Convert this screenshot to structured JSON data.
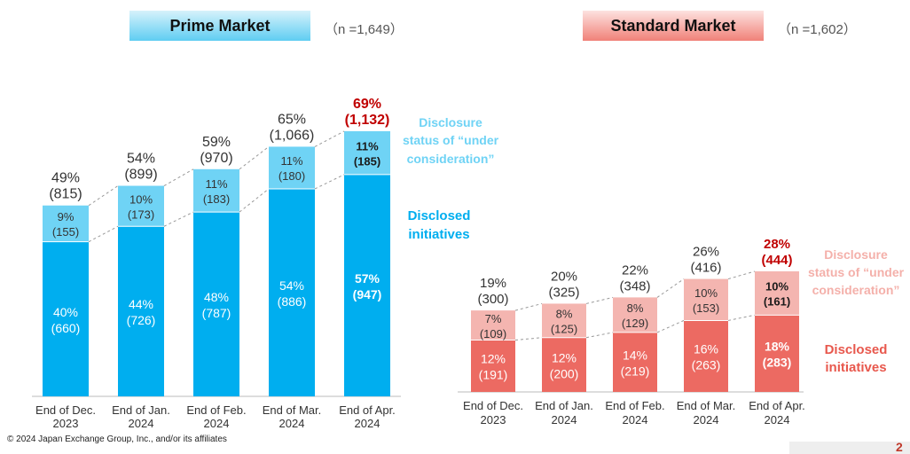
{
  "copyright": "© 2024 Japan Exchange Group, Inc., and/or its affiliates",
  "page_number": "2",
  "colors": {
    "prime_disclosed": "#00aeef",
    "prime_consider": "#6fd3f5",
    "prime_legend": "#00aeef",
    "prime_legend_consider": "#6fd3f5",
    "std_disclosed": "#ec6a62",
    "std_consider": "#f4b5b0",
    "std_legend": "#e8584d",
    "std_legend_consider": "#f4b0aa",
    "highlight": "#c00000"
  },
  "chart_data": [
    {
      "type": "bar",
      "stacked": true,
      "title": "Prime Market",
      "n_label": "（n =1,649）",
      "categories": [
        [
          "End of Dec.",
          "2023"
        ],
        [
          "End of Jan.",
          "2024"
        ],
        [
          "End of Feb.",
          "2024"
        ],
        [
          "End of Mar.",
          "2024"
        ],
        [
          "End of Apr.",
          "2024"
        ]
      ],
      "series": [
        {
          "name_lines": [
            "Disclosed",
            "initiatives"
          ],
          "values": [
            660,
            726,
            787,
            886,
            947
          ],
          "pct": [
            "40%",
            "44%",
            "48%",
            "54%",
            "57%"
          ],
          "counts": [
            "(660)",
            "(726)",
            "(787)",
            "(886)",
            "(947)"
          ]
        },
        {
          "name_lines": [
            "Disclosure",
            "status of “under",
            "consideration”"
          ],
          "values": [
            155,
            173,
            183,
            180,
            185
          ],
          "pct": [
            "9%",
            "10%",
            "11%",
            "11%",
            "11%"
          ],
          "counts": [
            "(155)",
            "(173)",
            "(183)",
            "(180)",
            "(185)"
          ]
        }
      ],
      "totals_pct": [
        "49%",
        "54%",
        "59%",
        "65%",
        "69%"
      ],
      "totals_count": [
        "(815)",
        "(899)",
        "(970)",
        "(1,066)",
        "(1,132)"
      ],
      "ylim": [
        0,
        1132
      ]
    },
    {
      "type": "bar",
      "stacked": true,
      "title": "Standard Market",
      "n_label": "（n =1,602）",
      "categories": [
        [
          "End of Dec.",
          "2023"
        ],
        [
          "End of Jan.",
          "2024"
        ],
        [
          "End of Feb.",
          "2024"
        ],
        [
          "End of Mar.",
          "2024"
        ],
        [
          "End of Apr.",
          "2024"
        ]
      ],
      "series": [
        {
          "name_lines": [
            "Disclosed",
            "initiatives"
          ],
          "values": [
            191,
            200,
            219,
            263,
            283
          ],
          "pct": [
            "12%",
            "12%",
            "14%",
            "16%",
            "18%"
          ],
          "counts": [
            "(191)",
            "(200)",
            "(219)",
            "(263)",
            "(283)"
          ]
        },
        {
          "name_lines": [
            "Disclosure",
            "status of “under",
            "consideration”"
          ],
          "values": [
            109,
            125,
            129,
            153,
            161
          ],
          "pct": [
            "7%",
            "8%",
            "8%",
            "10%",
            "10%"
          ],
          "counts": [
            "(109)",
            "(125)",
            "(129)",
            "(153)",
            "(161)"
          ]
        }
      ],
      "totals_pct": [
        "19%",
        "20%",
        "22%",
        "26%",
        "28%"
      ],
      "totals_count": [
        "(300)",
        "(325)",
        "(348)",
        "(416)",
        "(444)"
      ],
      "ylim": [
        0,
        444
      ]
    }
  ]
}
